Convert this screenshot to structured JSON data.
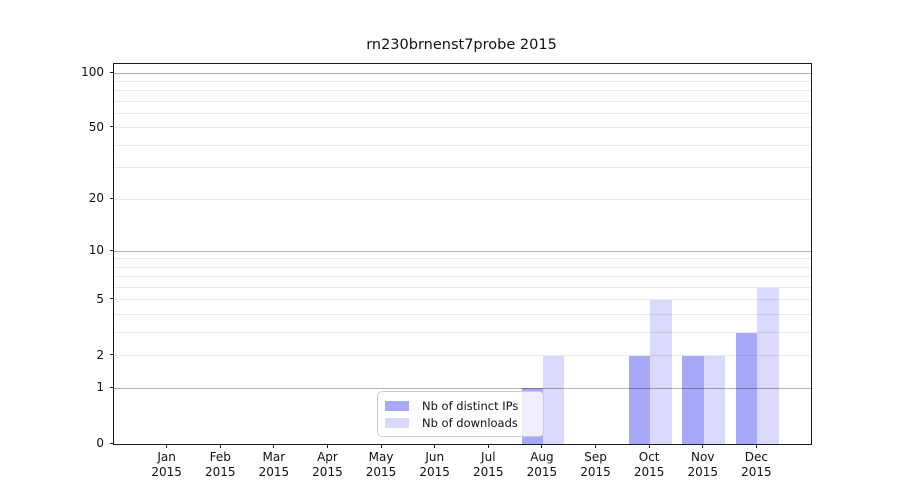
{
  "chart_data": {
    "type": "bar",
    "title": "rn230brnenst7probe 2015",
    "categories": [
      "Jan",
      "Feb",
      "Mar",
      "Apr",
      "May",
      "Jun",
      "Jul",
      "Aug",
      "Sep",
      "Oct",
      "Nov",
      "Dec"
    ],
    "x_tick_year": "2015",
    "series": [
      {
        "name": "Nb of distinct IPs",
        "color": "#a8a8f8",
        "values": [
          0,
          0,
          0,
          0,
          0,
          0,
          0,
          1,
          0,
          2,
          2,
          3
        ]
      },
      {
        "name": "Nb of downloads",
        "color": "#d9d9fb",
        "values": [
          0,
          0,
          0,
          0,
          0,
          0,
          0,
          2,
          0,
          5,
          2,
          6
        ]
      }
    ],
    "y_axis": {
      "scale": "log1p",
      "ticks": [
        0,
        1,
        2,
        5,
        10,
        20,
        50,
        100
      ],
      "major_gridlines": [
        1,
        10,
        100
      ],
      "minor_gridlines": [
        2,
        3,
        4,
        5,
        6,
        7,
        8,
        9,
        20,
        30,
        40,
        50,
        60,
        70,
        80,
        90
      ],
      "range": [
        0,
        112
      ]
    },
    "legend": {
      "position": "lower center"
    },
    "grid": true
  }
}
